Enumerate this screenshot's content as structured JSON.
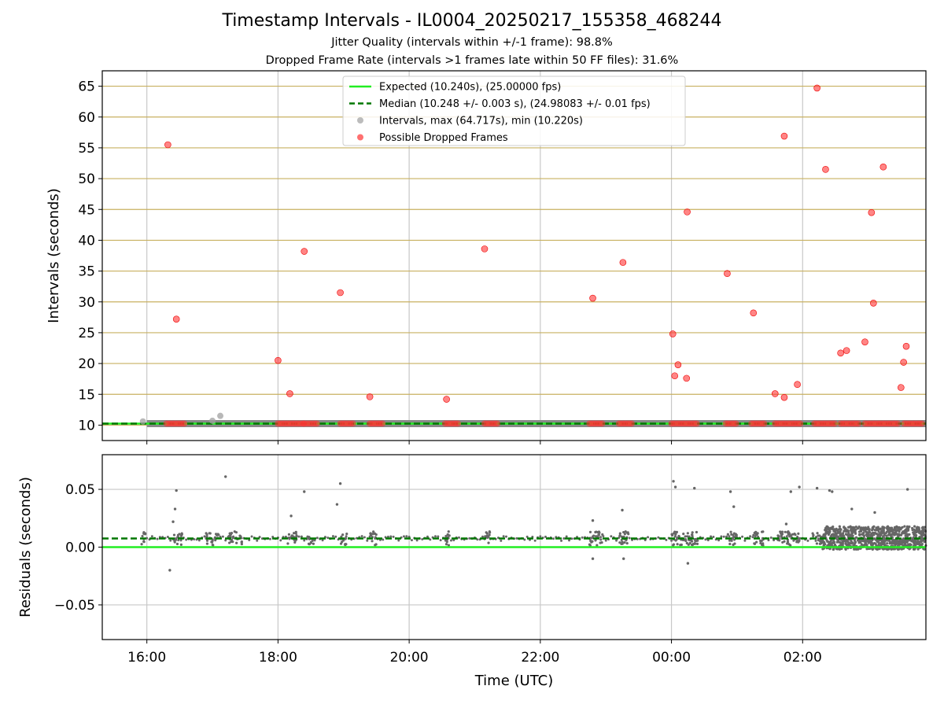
{
  "title": "Timestamp Intervals - IL0004_20250217_155358_468244",
  "subtitle_1": "Jitter Quality (intervals within +/-1 frame): 98.8%",
  "subtitle_2": "Dropped Frame Rate (intervals >1 frames late within 50 FF files): 31.6%",
  "colors": {
    "expected": "#22ee22",
    "median": "#007700",
    "intervals": "#a0a0a0",
    "dropped": "#ff3333",
    "residuals": "#666666",
    "hgrid_top": "#c8b060",
    "grid": "#c8c8c8",
    "band": "#888888"
  },
  "chart_data": [
    {
      "type": "scatter",
      "panel": "intervals",
      "xlabel": "",
      "ylabel": "Intervals (seconds)",
      "x_unit": "hours since 00:00 UTC, day 0 = 2025-02-17",
      "xlim": [
        -8.68,
        3.88
      ],
      "ylim": [
        7.5,
        67.5
      ],
      "yticks": [
        10,
        15,
        20,
        25,
        30,
        35,
        40,
        45,
        50,
        55,
        60,
        65
      ],
      "ytick_labels": [
        "10",
        "15",
        "20",
        "25",
        "30",
        "35",
        "40",
        "45",
        "50",
        "55",
        "60",
        "65"
      ],
      "grid": "both",
      "legend": {
        "placement": "top-center",
        "entries": [
          {
            "label": "Expected (10.240s), (25.00000 fps)",
            "style": "solid-line",
            "color": "#22ee22"
          },
          {
            "label": "Median (10.248 +/- 0.003 s), (24.98083 +/- 0.01 fps)",
            "style": "dashed-line",
            "color": "#007700"
          },
          {
            "label": "Intervals, max (64.717s), min (10.220s)",
            "style": "marker",
            "color": "#a0a0a0"
          },
          {
            "label": "Possible Dropped Frames",
            "style": "marker",
            "color": "#ff3333"
          }
        ]
      },
      "expected_value": 10.24,
      "median_value": 10.248,
      "baseline_start": -8.0,
      "intervals_points": [
        [
          -8.06,
          10.6
        ],
        [
          -7.0,
          10.7
        ],
        [
          -6.88,
          11.5
        ]
      ],
      "dropped_points": [
        [
          -7.68,
          55.5
        ],
        [
          -7.55,
          27.2
        ],
        [
          -6.0,
          20.5
        ],
        [
          -5.82,
          15.1
        ],
        [
          -5.6,
          38.2
        ],
        [
          -5.05,
          31.5
        ],
        [
          -4.6,
          14.6
        ],
        [
          -3.43,
          14.2
        ],
        [
          -2.85,
          38.6
        ],
        [
          -1.2,
          30.6
        ],
        [
          -0.74,
          36.4
        ],
        [
          0.02,
          24.8
        ],
        [
          0.05,
          18.0
        ],
        [
          0.1,
          19.8
        ],
        [
          0.23,
          17.6
        ],
        [
          0.24,
          44.6
        ],
        [
          0.85,
          34.6
        ],
        [
          1.25,
          28.2
        ],
        [
          1.58,
          15.1
        ],
        [
          1.72,
          14.5
        ],
        [
          1.72,
          56.9
        ],
        [
          1.92,
          16.6
        ],
        [
          2.22,
          64.7
        ],
        [
          2.35,
          51.5
        ],
        [
          2.58,
          21.7
        ],
        [
          2.67,
          22.1
        ],
        [
          2.95,
          23.5
        ],
        [
          3.05,
          44.5
        ],
        [
          3.08,
          29.8
        ],
        [
          3.23,
          51.9
        ],
        [
          3.5,
          16.1
        ],
        [
          3.54,
          20.2
        ],
        [
          3.58,
          22.8
        ]
      ],
      "dropped_clusters": [
        [
          -7.7,
          -7.4
        ],
        [
          -6.0,
          -5.6
        ],
        [
          -5.6,
          -5.4
        ],
        [
          -5.05,
          -4.85
        ],
        [
          -4.6,
          -4.4
        ],
        [
          -3.45,
          -3.25
        ],
        [
          -2.85,
          -2.65
        ],
        [
          -1.25,
          -1.05
        ],
        [
          -0.8,
          -0.6
        ],
        [
          0.0,
          0.4
        ],
        [
          0.83,
          1.02
        ],
        [
          1.22,
          1.42
        ],
        [
          1.58,
          1.98
        ],
        [
          2.18,
          2.52
        ],
        [
          2.58,
          2.88
        ],
        [
          2.95,
          3.48
        ],
        [
          3.55,
          3.82
        ]
      ]
    },
    {
      "type": "scatter",
      "panel": "residuals",
      "xlabel": "Time (UTC)",
      "ylabel": "Residuals (seconds)",
      "xlim": [
        -8.68,
        3.88
      ],
      "ylim": [
        -0.08,
        0.08
      ],
      "yticks": [
        -0.05,
        0.0,
        0.05
      ],
      "ytick_labels": [
        "−0.05",
        "0.00",
        "0.05"
      ],
      "xticks": [
        -8,
        -6,
        -4,
        -2,
        0,
        2
      ],
      "xtick_labels": [
        "16:00",
        "18:00",
        "20:00",
        "22:00",
        "00:00",
        "02:00"
      ],
      "grid": "both",
      "expected_value": 0.0,
      "median_value": 0.0075,
      "outliers": [
        [
          -7.65,
          -0.02
        ],
        [
          -7.55,
          0.049
        ],
        [
          -7.57,
          0.033
        ],
        [
          -7.6,
          0.022
        ],
        [
          -6.8,
          0.061
        ],
        [
          -5.8,
          0.027
        ],
        [
          -5.6,
          0.048
        ],
        [
          -5.1,
          0.037
        ],
        [
          -5.05,
          0.055
        ],
        [
          -0.75,
          0.032
        ],
        [
          -1.2,
          0.023
        ],
        [
          -1.2,
          -0.01
        ],
        [
          -0.73,
          -0.01
        ],
        [
          0.03,
          0.057
        ],
        [
          0.06,
          0.052
        ],
        [
          0.25,
          -0.014
        ],
        [
          0.35,
          0.051
        ],
        [
          0.9,
          0.048
        ],
        [
          0.95,
          0.035
        ],
        [
          1.75,
          0.02
        ],
        [
          1.82,
          0.048
        ],
        [
          1.95,
          0.052
        ],
        [
          2.22,
          0.051
        ],
        [
          2.41,
          0.049
        ],
        [
          2.45,
          0.048
        ],
        [
          2.75,
          0.033
        ],
        [
          3.1,
          0.03
        ],
        [
          3.6,
          0.05
        ]
      ],
      "dense_band": {
        "start": 2.3,
        "end": 3.88,
        "low": -0.002,
        "high": 0.018
      },
      "clusters": [
        [
          -8.08,
          -8.02
        ],
        [
          -7.6,
          -7.45
        ],
        [
          -7.1,
          -6.9
        ],
        [
          -6.75,
          -6.55
        ],
        [
          -5.85,
          -5.7
        ],
        [
          -5.55,
          -5.45
        ],
        [
          -5.05,
          -4.95
        ],
        [
          -4.6,
          -4.5
        ],
        [
          -3.45,
          -3.35
        ],
        [
          -2.85,
          -2.75
        ],
        [
          -1.25,
          -1.05
        ],
        [
          -0.8,
          -0.65
        ],
        [
          0.0,
          0.4
        ],
        [
          0.85,
          1.0
        ],
        [
          1.25,
          1.4
        ],
        [
          1.6,
          1.95
        ],
        [
          2.15,
          2.3
        ]
      ]
    }
  ]
}
